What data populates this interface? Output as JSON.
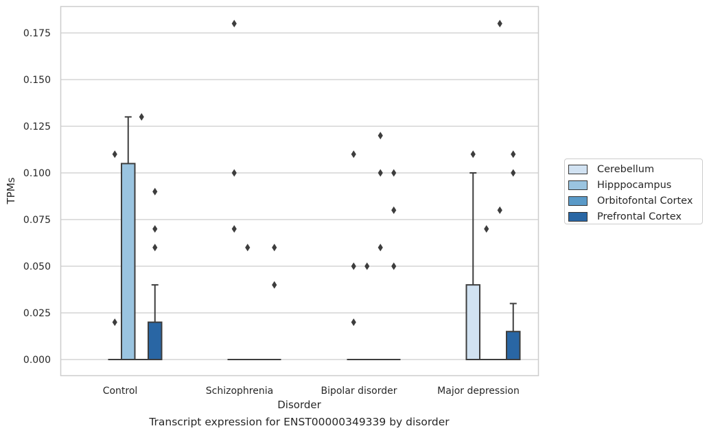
{
  "caption": "Transcript expression for ENST00000349339 by disorder",
  "chart_data": {
    "type": "box",
    "title": "",
    "xlabel": "Disorder",
    "ylabel": "TPMs",
    "ylim": [
      -0.009,
      0.189
    ],
    "yticks": [
      "0.000",
      "0.025",
      "0.050",
      "0.075",
      "0.100",
      "0.125",
      "0.150",
      "0.175"
    ],
    "ytick_values": [
      0,
      0.025,
      0.05,
      0.075,
      0.1,
      0.125,
      0.15,
      0.175
    ],
    "grid": "horizontal",
    "legend_position": "outside right",
    "categories": [
      "Control",
      "Schizophrenia",
      "Bipolar disorder",
      "Major depression"
    ],
    "series": [
      {
        "name": "Cerebellum",
        "color": "#d1e2f2",
        "boxes": [
          {
            "q1": 0,
            "median": 0,
            "q3": 0,
            "whisker_low": 0,
            "whisker_high": 0,
            "outliers": [
              0.11,
              0.02
            ]
          },
          {
            "q1": 0,
            "median": 0,
            "q3": 0,
            "whisker_low": 0,
            "whisker_high": 0,
            "outliers": [
              0.18,
              0.1,
              0.07
            ]
          },
          {
            "q1": 0,
            "median": 0,
            "q3": 0,
            "whisker_low": 0,
            "whisker_high": 0,
            "outliers": [
              0.11,
              0.05,
              0.02
            ]
          },
          {
            "q1": 0,
            "median": 0,
            "q3": 0.04,
            "whisker_low": 0,
            "whisker_high": 0.1,
            "outliers": [
              0.11
            ]
          }
        ]
      },
      {
        "name": "Hipppocampus",
        "color": "#9ac4e0",
        "boxes": [
          {
            "q1": 0,
            "median": 0,
            "q3": 0.105,
            "whisker_low": 0,
            "whisker_high": 0.13,
            "outliers": []
          },
          {
            "q1": 0,
            "median": 0,
            "q3": 0,
            "whisker_low": 0,
            "whisker_high": 0,
            "outliers": [
              0.06
            ]
          },
          {
            "q1": 0,
            "median": 0,
            "q3": 0,
            "whisker_low": 0,
            "whisker_high": 0,
            "outliers": [
              0.05
            ]
          },
          {
            "q1": 0,
            "median": 0,
            "q3": 0,
            "whisker_low": 0,
            "whisker_high": 0,
            "outliers": [
              0.07
            ]
          }
        ]
      },
      {
        "name": "Orbitofontal Cortex",
        "color": "#5a9ac8",
        "boxes": [
          {
            "q1": 0,
            "median": 0,
            "q3": 0,
            "whisker_low": 0,
            "whisker_high": 0,
            "outliers": [
              0.13
            ]
          },
          {
            "q1": 0,
            "median": 0,
            "q3": 0,
            "whisker_low": 0,
            "whisker_high": 0,
            "outliers": []
          },
          {
            "q1": 0,
            "median": 0,
            "q3": 0,
            "whisker_low": 0,
            "whisker_high": 0,
            "outliers": [
              0.12,
              0.1,
              0.06
            ]
          },
          {
            "q1": 0,
            "median": 0,
            "q3": 0,
            "whisker_low": 0,
            "whisker_high": 0,
            "outliers": [
              0.18,
              0.08
            ]
          }
        ]
      },
      {
        "name": "Prefrontal Cortex",
        "color": "#2966a4",
        "boxes": [
          {
            "q1": 0,
            "median": 0,
            "q3": 0.02,
            "whisker_low": 0,
            "whisker_high": 0.04,
            "outliers": [
              0.09,
              0.07,
              0.06
            ]
          },
          {
            "q1": 0,
            "median": 0,
            "q3": 0,
            "whisker_low": 0,
            "whisker_high": 0,
            "outliers": [
              0.06,
              0.04
            ]
          },
          {
            "q1": 0,
            "median": 0,
            "q3": 0,
            "whisker_low": 0,
            "whisker_high": 0,
            "outliers": [
              0.1,
              0.08,
              0.05
            ]
          },
          {
            "q1": 0,
            "median": 0,
            "q3": 0.015,
            "whisker_low": 0,
            "whisker_high": 0.03,
            "outliers": [
              0.11,
              0.1
            ]
          }
        ]
      }
    ]
  }
}
